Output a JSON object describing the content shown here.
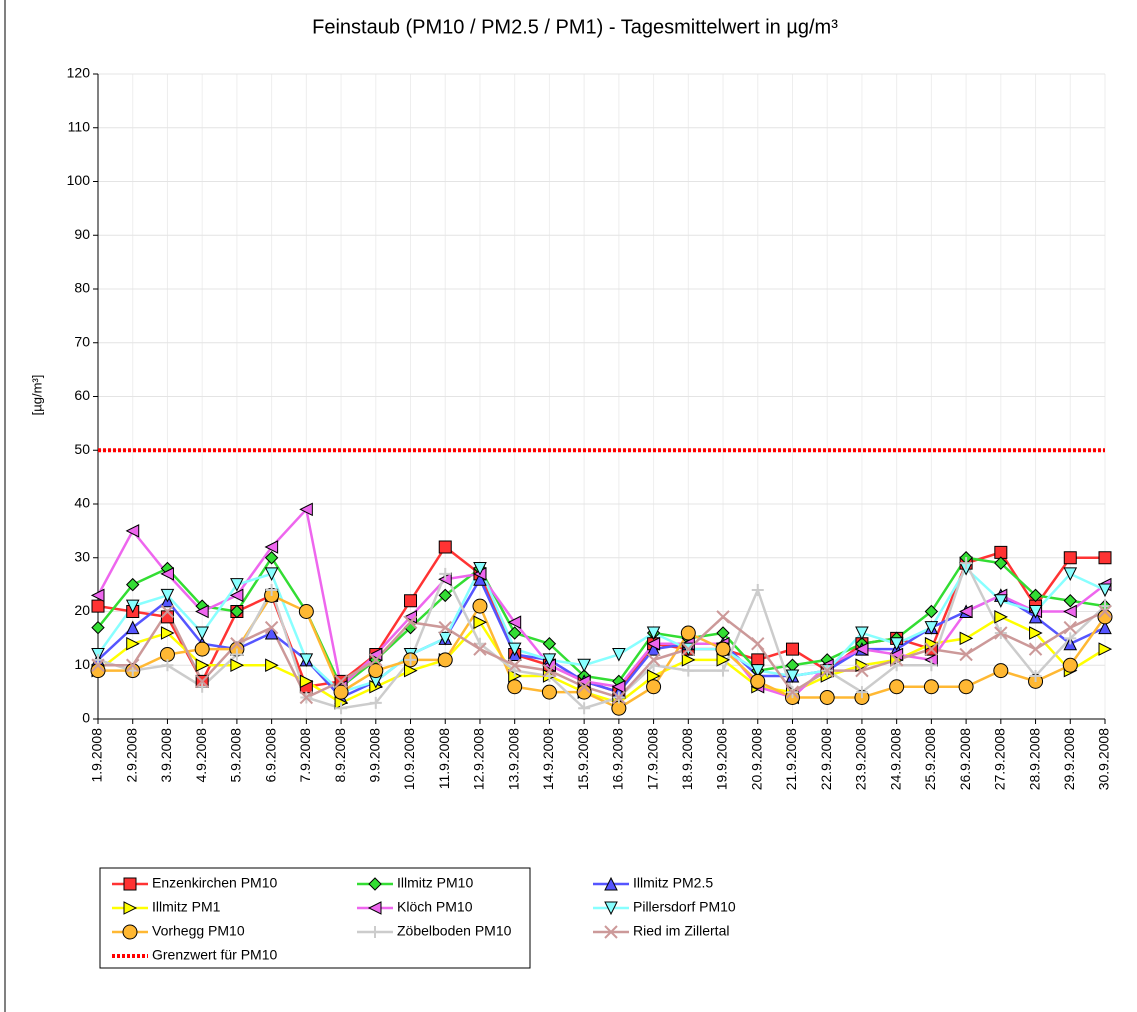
{
  "chart_data": {
    "type": "line",
    "title": "Feinstaub (PM10 / PM2.5 / PM1) -  Tagesmittelwert in µg/m³",
    "y_label": "[µg/m³]",
    "categories": [
      "1.9.2008",
      "2.9.2008",
      "3.9.2008",
      "4.9.2008",
      "5.9.2008",
      "6.9.2008",
      "7.9.2008",
      "8.9.2008",
      "9.9.2008",
      "10.9.2008",
      "11.9.2008",
      "12.9.2008",
      "13.9.2008",
      "14.9.2008",
      "15.9.2008",
      "16.9.2008",
      "17.9.2008",
      "18.9.2008",
      "19.9.2008",
      "20.9.2008",
      "21.9.2008",
      "22.9.2008",
      "23.9.2008",
      "24.9.2008",
      "25.9.2008",
      "26.9.2008",
      "27.9.2008",
      "28.9.2008",
      "29.9.2008",
      "30.9.2008"
    ],
    "series": [
      {
        "name": "Enzenkirchen PM10",
        "color": "#ff3333",
        "marker": "square",
        "values": [
          21,
          20,
          19,
          7,
          20,
          23,
          6,
          7,
          12,
          22,
          32,
          27,
          12,
          10,
          7,
          5,
          14,
          13,
          13,
          11,
          13,
          9,
          14,
          15,
          13,
          29,
          31,
          21,
          30,
          30
        ]
      },
      {
        "name": "Illmitz PM10",
        "color": "#33dd33",
        "marker": "diamond",
        "values": [
          17,
          25,
          28,
          21,
          20,
          30,
          20,
          6,
          11,
          17,
          23,
          28,
          16,
          14,
          8,
          7,
          16,
          15,
          16,
          9,
          10,
          11,
          14,
          15,
          20,
          30,
          29,
          23,
          22,
          21
        ]
      },
      {
        "name": "Illmitz PM2.5",
        "color": "#5555ff",
        "marker": "triangle-up",
        "values": [
          11,
          17,
          22,
          14,
          13,
          16,
          11,
          4,
          7,
          12,
          15,
          26,
          12,
          11,
          7,
          5,
          13,
          14,
          14,
          8,
          8,
          9,
          13,
          13,
          17,
          20,
          23,
          19,
          14,
          17
        ]
      },
      {
        "name": "Illmitz PM1",
        "color": "#ffff00",
        "marker": "triangle-right",
        "values": [
          9,
          14,
          16,
          10,
          10,
          10,
          7,
          3,
          6,
          9,
          11,
          18,
          8,
          8,
          5,
          3,
          8,
          11,
          11,
          6,
          5,
          8,
          10,
          11,
          14,
          15,
          19,
          16,
          9,
          13
        ]
      },
      {
        "name": "Klöch PM10",
        "color": "#ee66ee",
        "marker": "triangle-left",
        "values": [
          23,
          35,
          27,
          20,
          23,
          32,
          39,
          6,
          12,
          19,
          26,
          27,
          18,
          10,
          7,
          6,
          14,
          14,
          14,
          6,
          4,
          10,
          13,
          12,
          11,
          20,
          23,
          20,
          20,
          25
        ]
      },
      {
        "name": "Pillersdorf PM10",
        "color": "#88ffff",
        "marker": "triangle-down",
        "values": [
          12,
          21,
          23,
          16,
          25,
          27,
          11,
          5,
          7,
          12,
          15,
          28,
          13,
          11,
          10,
          12,
          16,
          13,
          13,
          9,
          8,
          9,
          16,
          14,
          17,
          28,
          22,
          20,
          27,
          24
        ]
      },
      {
        "name": "Vorhegg PM10",
        "color": "#ffb833",
        "marker": "circle",
        "values": [
          9,
          9,
          12,
          13,
          13,
          23,
          20,
          5,
          9,
          11,
          11,
          21,
          6,
          5,
          5,
          2,
          6,
          16,
          13,
          7,
          4,
          4,
          4,
          6,
          6,
          6,
          9,
          7,
          10,
          19
        ]
      },
      {
        "name": "Zöbelboden PM10",
        "color": "#cccccc",
        "marker": "plus",
        "values": [
          11,
          9,
          10,
          6,
          12,
          24,
          4,
          2,
          3,
          11,
          27,
          14,
          9,
          8,
          2,
          4,
          10,
          9,
          9,
          24,
          5,
          9,
          5,
          10,
          10,
          29,
          16,
          8,
          15,
          21
        ]
      },
      {
        "name": "Ried im Zillertal",
        "color": "#cc9999",
        "marker": "cross",
        "values": [
          10,
          10,
          20,
          7,
          14,
          17,
          4,
          7,
          11,
          18,
          17,
          13,
          10,
          9,
          6,
          4,
          11,
          13,
          19,
          14,
          5,
          9,
          9,
          11,
          13,
          12,
          16,
          13,
          17,
          20
        ]
      }
    ],
    "threshold": {
      "name": "Grenzwert für PM10",
      "value": 50,
      "color": "#ff0000"
    },
    "ylim": [
      0,
      120
    ],
    "yticks": [
      0,
      10,
      20,
      30,
      40,
      50,
      60,
      70,
      80,
      90,
      100,
      110,
      120
    ],
    "grid": true
  }
}
